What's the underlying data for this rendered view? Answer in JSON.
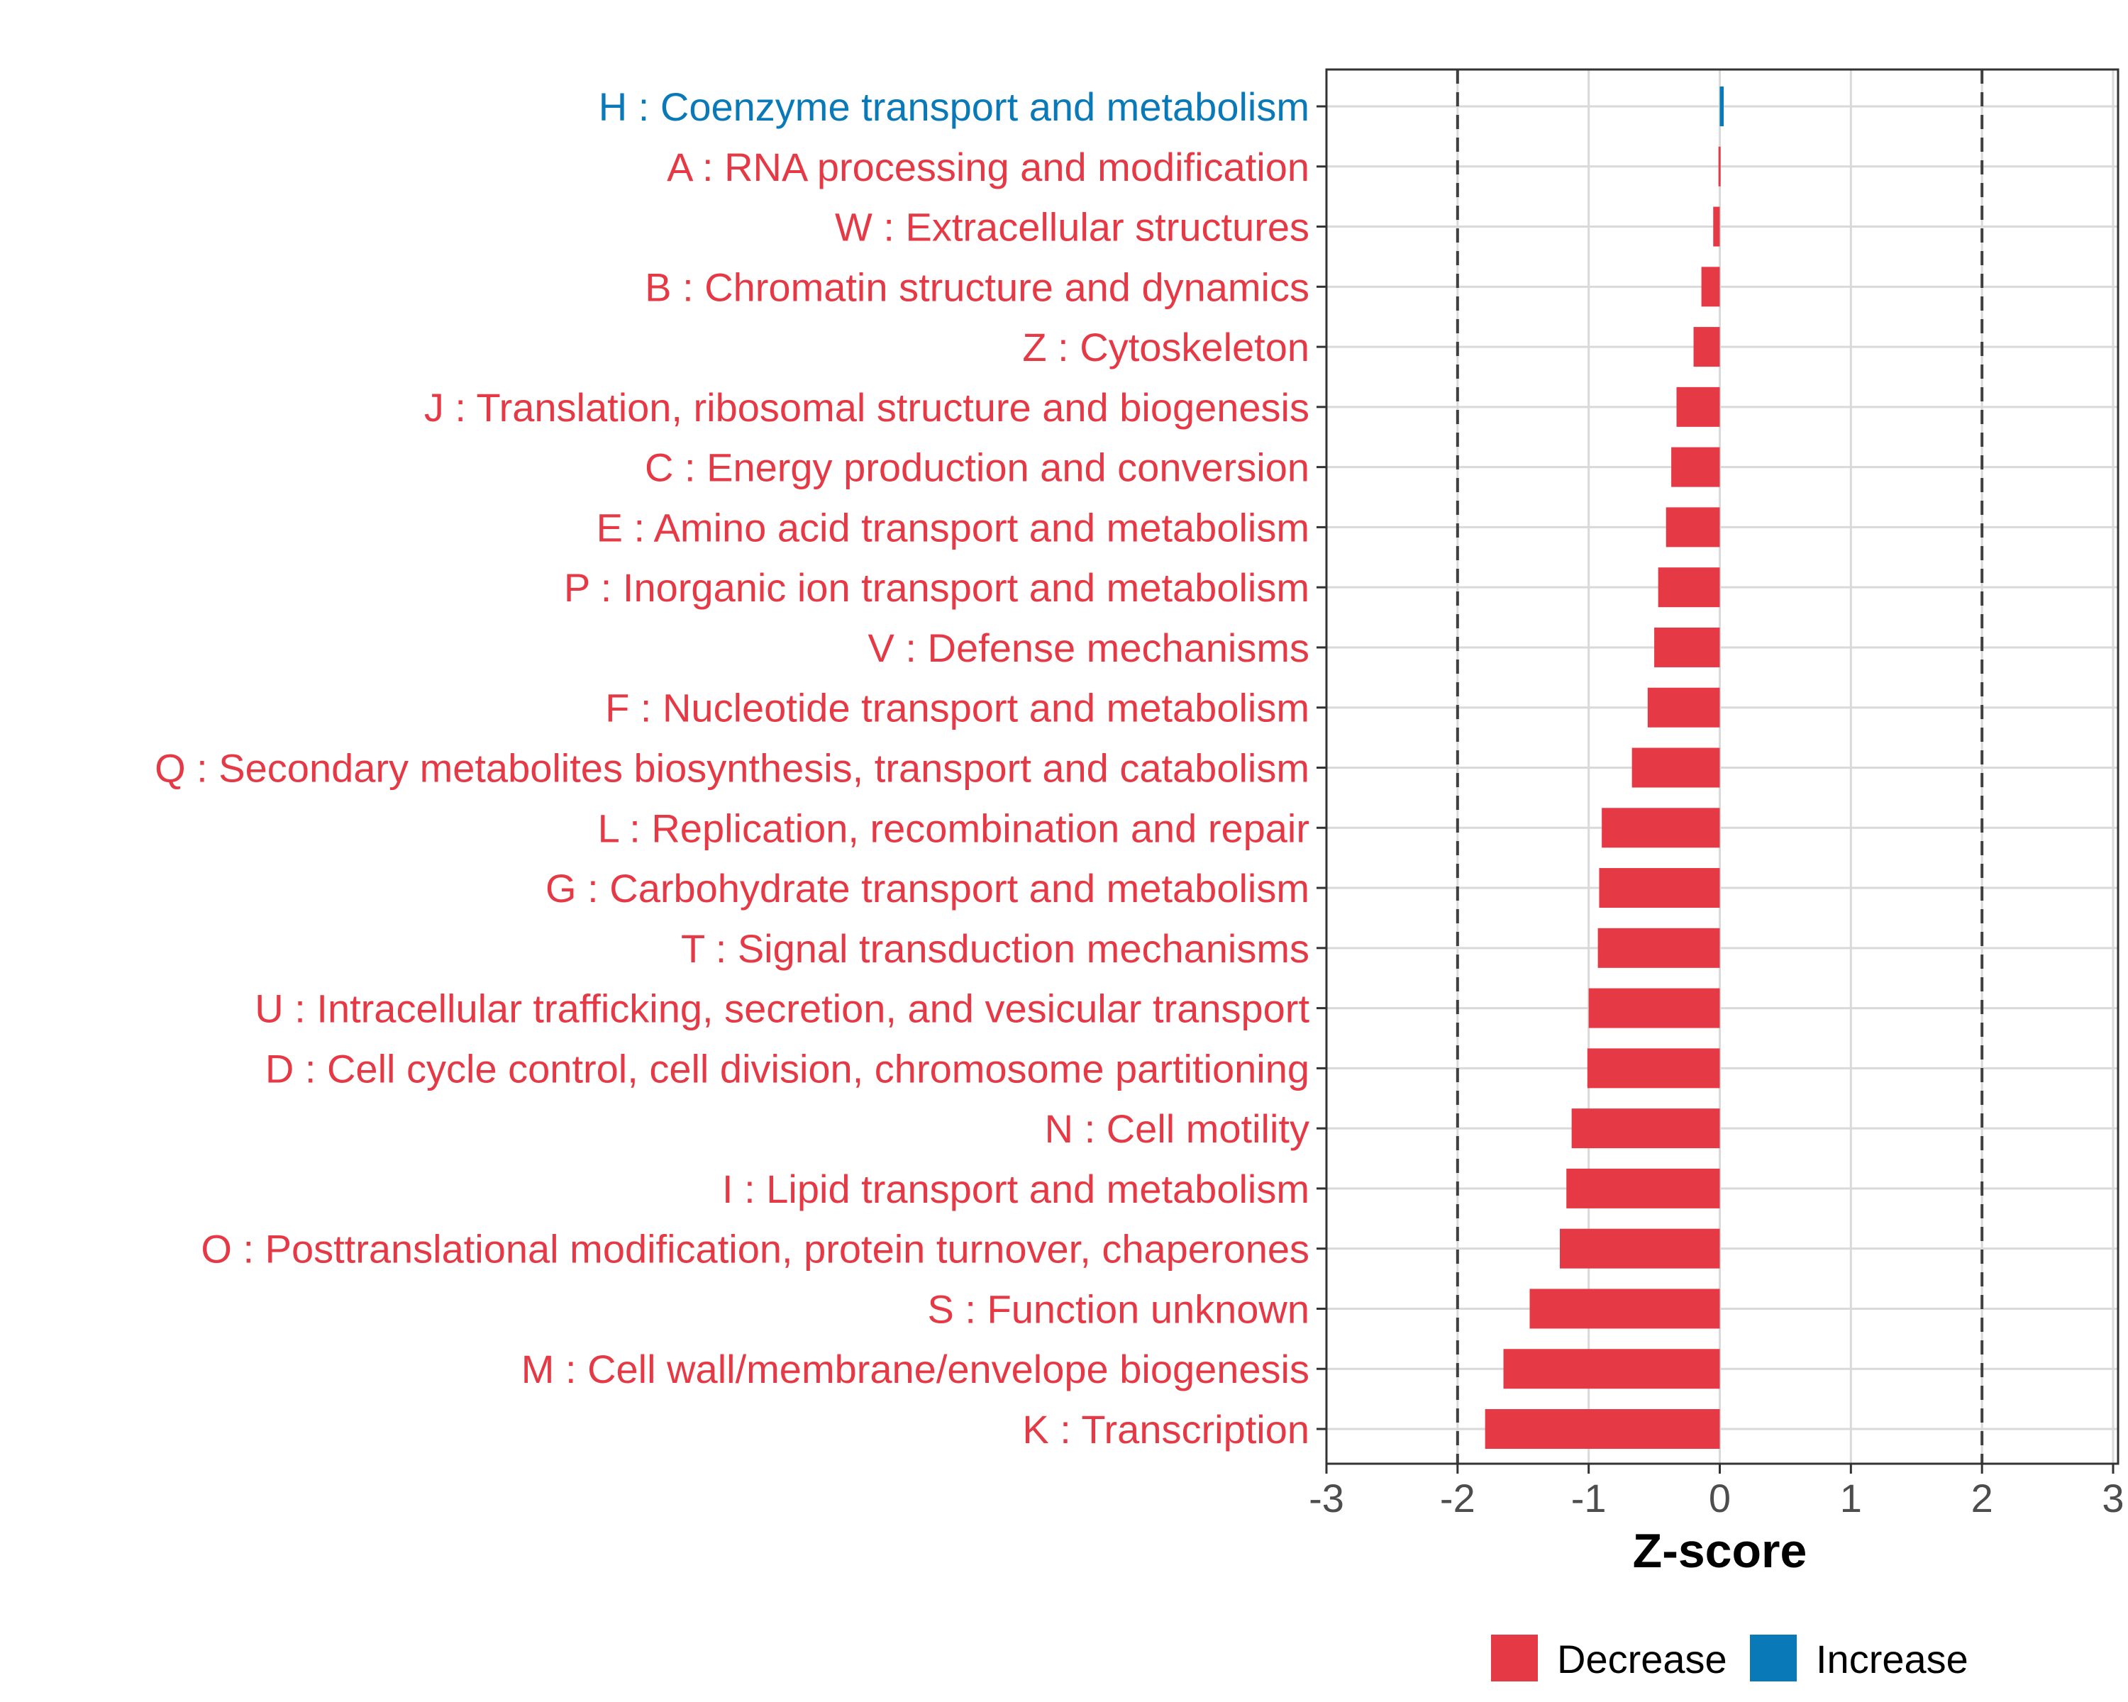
{
  "chart_data": {
    "type": "bar",
    "orientation": "horizontal",
    "xlabel": "Z-score",
    "xlim": [
      -3,
      3
    ],
    "xticks": [
      -3,
      -2,
      -1,
      0,
      1,
      2,
      3
    ],
    "xtick_labels": [
      "-3",
      "-2",
      "-1",
      "0",
      "1",
      "2",
      "3"
    ],
    "reference_lines": [
      -2,
      2
    ],
    "grid": true,
    "categories": [
      "H : Coenzyme transport and metabolism",
      "A : RNA processing and modification",
      "W : Extracellular structures",
      "B : Chromatin structure and dynamics",
      "Z : Cytoskeleton",
      "J : Translation, ribosomal structure and biogenesis",
      "C : Energy production and conversion",
      "E : Amino acid transport and metabolism",
      "P : Inorganic ion transport and metabolism",
      "V : Defense mechanisms",
      "F : Nucleotide transport and metabolism",
      "Q : Secondary metabolites biosynthesis, transport and catabolism",
      "L : Replication, recombination and repair",
      "G : Carbohydrate transport and metabolism",
      "T : Signal transduction mechanisms",
      "U : Intracellular trafficking, secretion, and vesicular transport",
      "D : Cell cycle control, cell division, chromosome partitioning",
      "N : Cell motility",
      "I : Lipid transport and metabolism",
      "O : Posttranslational modification, protein turnover, chaperones",
      "S : Function unknown",
      "M : Cell wall/membrane/envelope biogenesis",
      "K : Transcription"
    ],
    "values": [
      0.03,
      -0.01,
      -0.05,
      -0.14,
      -0.2,
      -0.33,
      -0.37,
      -0.41,
      -0.47,
      -0.5,
      -0.55,
      -0.67,
      -0.9,
      -0.92,
      -0.93,
      -1.0,
      -1.01,
      -1.13,
      -1.17,
      -1.22,
      -1.45,
      -1.65,
      -1.79
    ],
    "groups": [
      "Increase",
      "Decrease",
      "Decrease",
      "Decrease",
      "Decrease",
      "Decrease",
      "Decrease",
      "Decrease",
      "Decrease",
      "Decrease",
      "Decrease",
      "Decrease",
      "Decrease",
      "Decrease",
      "Decrease",
      "Decrease",
      "Decrease",
      "Decrease",
      "Decrease",
      "Decrease",
      "Decrease",
      "Decrease",
      "Decrease"
    ],
    "legend": {
      "position": "bottom",
      "entries": [
        {
          "label": "Decrease",
          "color": "#e63946"
        },
        {
          "label": "Increase",
          "color": "#0a79b8"
        }
      ]
    }
  }
}
